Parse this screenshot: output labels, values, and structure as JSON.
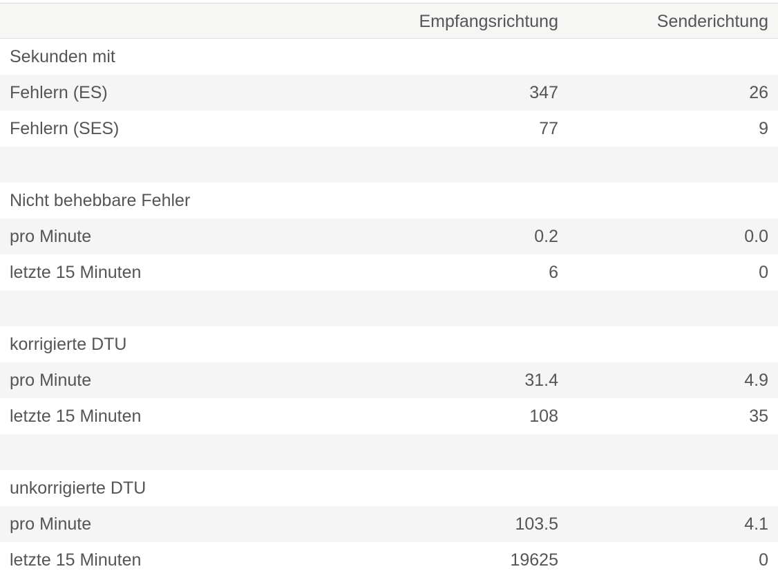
{
  "table": {
    "columns": [
      "Empfangsrichtung",
      "Senderichtung"
    ],
    "rows": [
      {
        "label": "Sekunden mit"
      },
      {
        "label": "Fehlern (ES)",
        "values": [
          "347",
          "26"
        ]
      },
      {
        "label": "Fehlern (SES)",
        "values": [
          "77",
          "9"
        ]
      },
      null,
      {
        "label": "Nicht behebbare Fehler"
      },
      {
        "label": "pro Minute",
        "values": [
          "0.2",
          "0.0"
        ]
      },
      {
        "label": "letzte 15 Minuten",
        "values": [
          "6",
          "0"
        ]
      },
      null,
      {
        "label": "korrigierte DTU"
      },
      {
        "label": "pro Minute",
        "values": [
          "31.4",
          "4.9"
        ]
      },
      {
        "label": "letzte 15 Minuten",
        "values": [
          "108",
          "35"
        ]
      },
      null,
      {
        "label": "unkorrigierte DTU"
      },
      {
        "label": "pro Minute",
        "values": [
          "103.5",
          "4.1"
        ]
      },
      {
        "label": "letzte 15 Minuten",
        "values": [
          "19625",
          "0"
        ]
      }
    ]
  }
}
